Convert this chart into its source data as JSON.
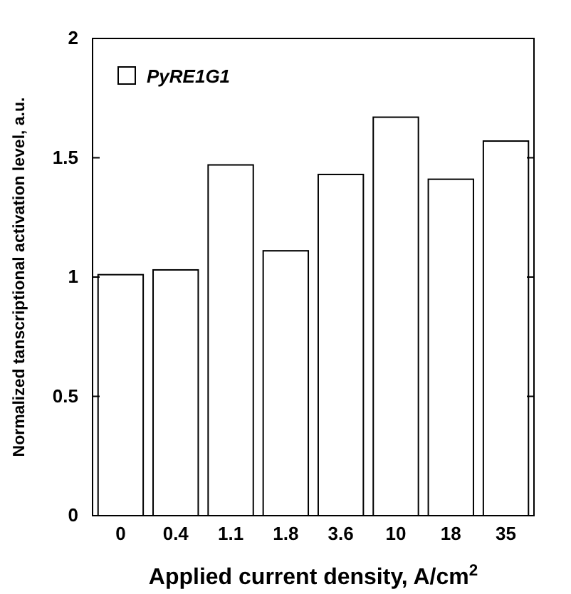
{
  "chart_data": {
    "type": "bar",
    "xlabel": "Applied current density, A/cm$^{2}$",
    "ylabel": "Normalized tanscriptional activation level, a.u.",
    "categories": [
      "0",
      "0.4",
      "1.1",
      "1.8",
      "3.6",
      "10",
      "18",
      "35"
    ],
    "series": [
      {
        "name": "PyRE1G1",
        "color": "#ffffff",
        "values": [
          1.01,
          1.03,
          1.47,
          1.11,
          1.43,
          1.67,
          1.41,
          1.57
        ]
      }
    ],
    "ylim": [
      0,
      2
    ],
    "yticks": [
      0,
      0.5,
      1,
      1.5,
      2
    ],
    "legend": "top left"
  }
}
